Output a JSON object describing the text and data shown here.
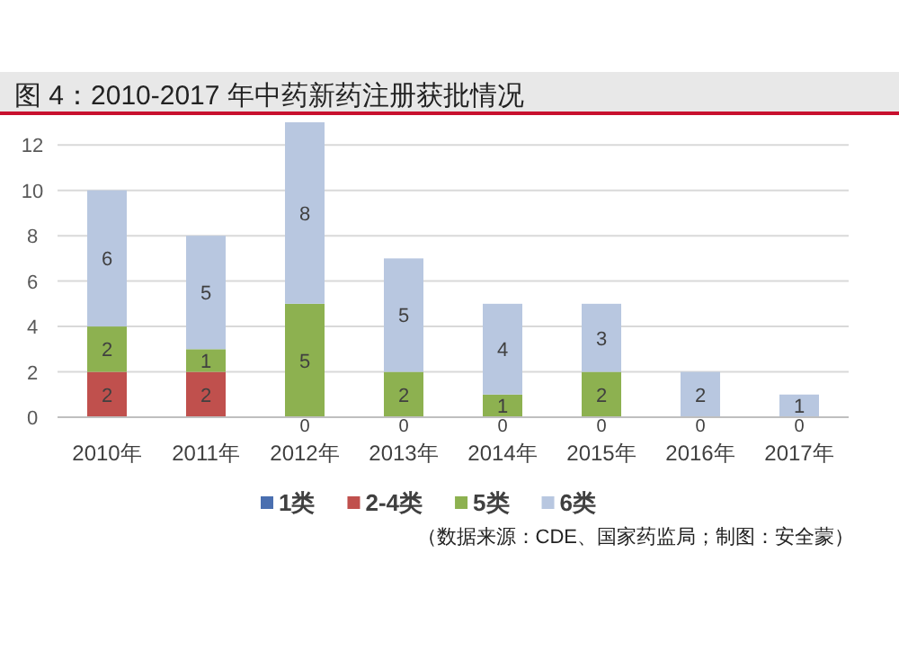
{
  "chart_data": {
    "type": "bar",
    "stacked": true,
    "title": "图 4：2010-2017 年中药新药注册获批情况",
    "categories": [
      "2010年",
      "2011年",
      "2012年",
      "2013年",
      "2014年",
      "2015年",
      "2016年",
      "2017年"
    ],
    "series": [
      {
        "name": "1类",
        "color": "#4a6fb0",
        "values": [
          0,
          0,
          0,
          0,
          0,
          0,
          0,
          0
        ],
        "value_labels": [
          null,
          null,
          null,
          null,
          null,
          null,
          null,
          null
        ]
      },
      {
        "name": "2-4类",
        "color": "#c0504d",
        "values": [
          2,
          2,
          0,
          0,
          0,
          0,
          0,
          0
        ],
        "value_labels": [
          "2",
          "2",
          null,
          null,
          null,
          null,
          null,
          null
        ]
      },
      {
        "name": "5类",
        "color": "#8db150",
        "values": [
          2,
          1,
          5,
          2,
          1,
          2,
          0,
          0
        ],
        "value_labels": [
          "2",
          "1",
          "5",
          "2",
          "1",
          "2",
          null,
          null
        ]
      },
      {
        "name": "6类",
        "color": "#b8c7e0",
        "values": [
          6,
          5,
          8,
          5,
          4,
          3,
          2,
          1
        ],
        "value_labels": [
          "6",
          "5",
          "8",
          "5",
          "4",
          "3",
          "2",
          "1"
        ]
      }
    ],
    "ylim": [
      0,
      13
    ],
    "yticks": [
      0,
      2,
      4,
      6,
      8,
      10,
      12
    ],
    "grid": "y",
    "legend": "bottom",
    "annotations": [
      {
        "text": "0",
        "x": "2012年",
        "y": 0
      },
      {
        "text": "0",
        "x": "2013年",
        "y": 0
      },
      {
        "text": "0",
        "x": "2014年",
        "y": 0
      },
      {
        "text": "0",
        "x": "2015年",
        "y": 0
      },
      {
        "text": "0",
        "x": "2016年",
        "y": 0
      },
      {
        "text": "0",
        "x": "2017年",
        "y": 0
      },
      "（数据来源：CDE、国家药监局；制图：安全蒙）"
    ]
  }
}
